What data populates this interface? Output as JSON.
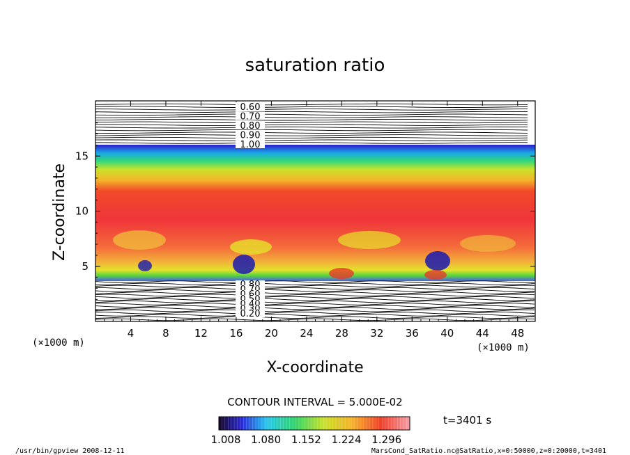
{
  "chart_data": {
    "type": "heatmap",
    "title": "saturation ratio",
    "xlabel": "X-coordinate",
    "ylabel": "Z-coordinate",
    "x_unit": "(×1000 m)",
    "y_unit": "(×1000 m)",
    "xlim": [
      0,
      50
    ],
    "ylim": [
      0,
      20
    ],
    "x_ticks": [
      4,
      8,
      12,
      16,
      20,
      24,
      28,
      32,
      36,
      40,
      44,
      48
    ],
    "y_ticks": [
      5,
      10,
      15
    ],
    "contour_interval_text": "CONTOUR INTERVAL = 5.000E-02",
    "contour_labels_top": [
      "0.60",
      "0.70",
      "0.80",
      "0.90",
      "1.00"
    ],
    "contour_labels_bottom": [
      "0.80",
      "0.70",
      "0.60",
      "0.50",
      "0.40",
      "0.30",
      "0.20"
    ],
    "colorbar": {
      "min": 1.008,
      "max": 1.35,
      "tick_labels": [
        "1.008",
        "1.080",
        "1.152",
        "1.224",
        "1.296"
      ]
    },
    "time_label": "t=3401 s",
    "footer_left": "/usr/bin/gpview   2008-12-11",
    "footer_right": "MarsCond_SatRatio.nc@SatRatio,x=0:50000,z=0:20000,t=3401"
  }
}
